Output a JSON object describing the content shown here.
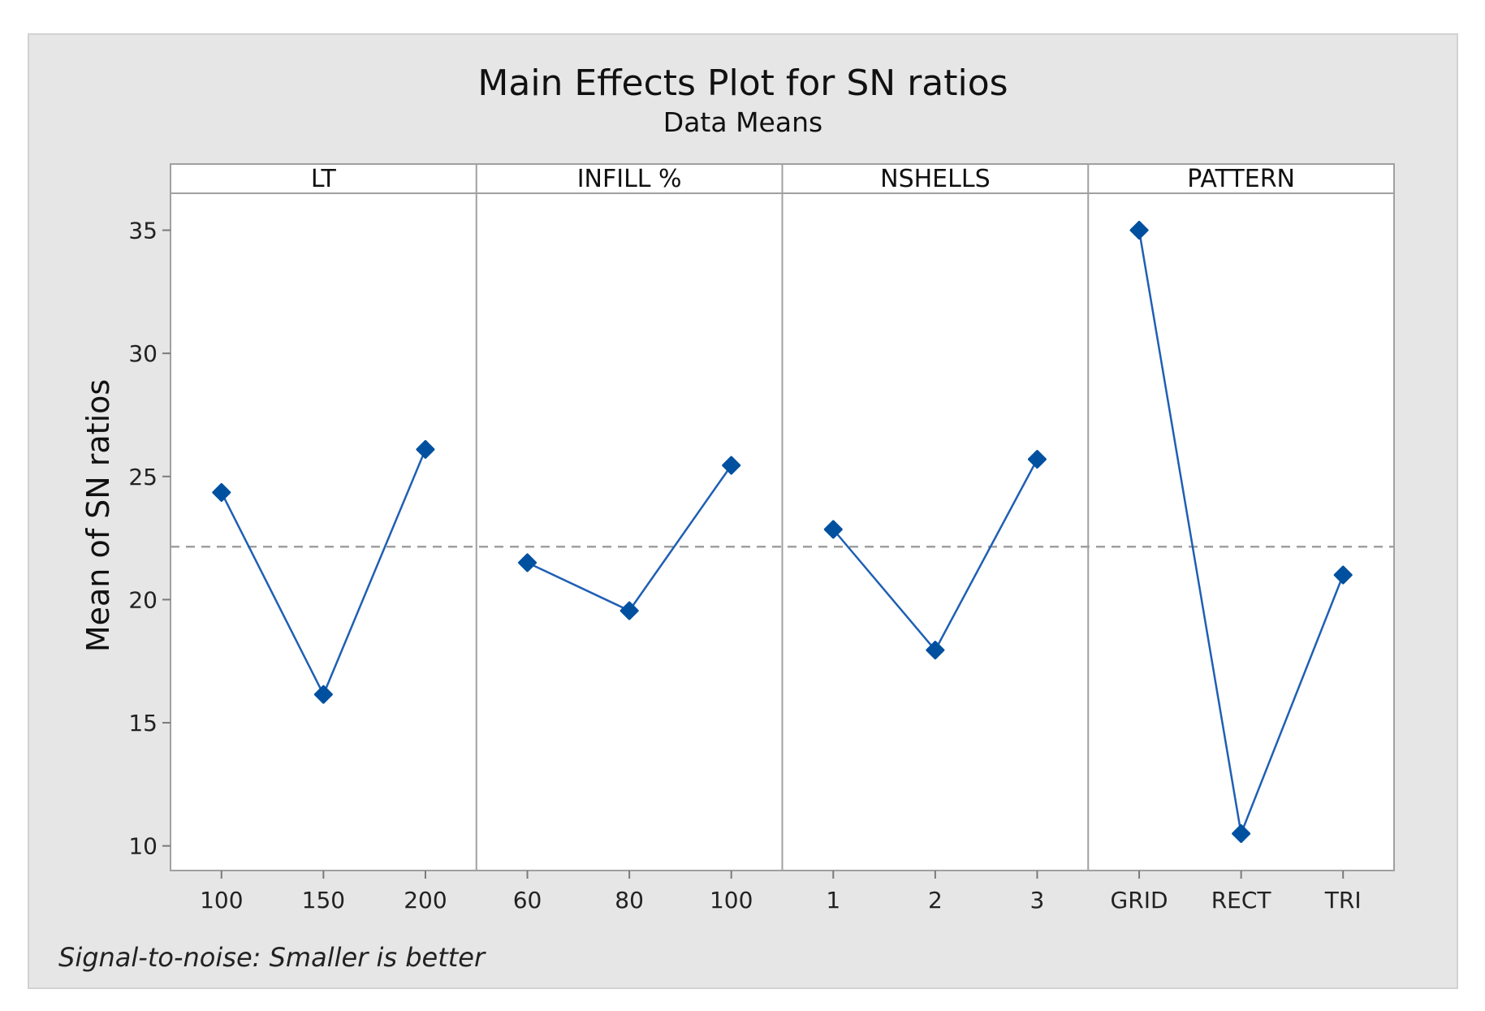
{
  "chart_data": {
    "type": "line",
    "title": "Main Effects Plot for SN ratios",
    "subtitle": "Data Means",
    "ylabel": "Mean of SN ratios",
    "ylim": [
      9,
      36.5
    ],
    "yticks": [
      10,
      15,
      20,
      25,
      30,
      35
    ],
    "reference_line": 22.15,
    "footnote": "Signal-to-noise: Smaller is better",
    "grid": false,
    "colors": {
      "background": "#e6e6e6",
      "plot_area": "#ffffff",
      "series": "#1f5fb4",
      "marker": "#0050a0",
      "reference": "#a0a0a0",
      "panel_border": "#a0a0a0"
    },
    "panels": [
      {
        "name": "LT",
        "categories": [
          "100",
          "150",
          "200"
        ],
        "values": [
          24.35,
          16.15,
          26.1
        ]
      },
      {
        "name": "INFILL %",
        "categories": [
          "60",
          "80",
          "100"
        ],
        "values": [
          21.5,
          19.55,
          25.45
        ]
      },
      {
        "name": "NSHELLS",
        "categories": [
          "1",
          "2",
          "3"
        ],
        "values": [
          22.85,
          17.95,
          25.7
        ]
      },
      {
        "name": "PATTERN",
        "categories": [
          "GRID",
          "RECT",
          "TRI"
        ],
        "values": [
          35.0,
          10.5,
          21.0
        ]
      }
    ]
  }
}
